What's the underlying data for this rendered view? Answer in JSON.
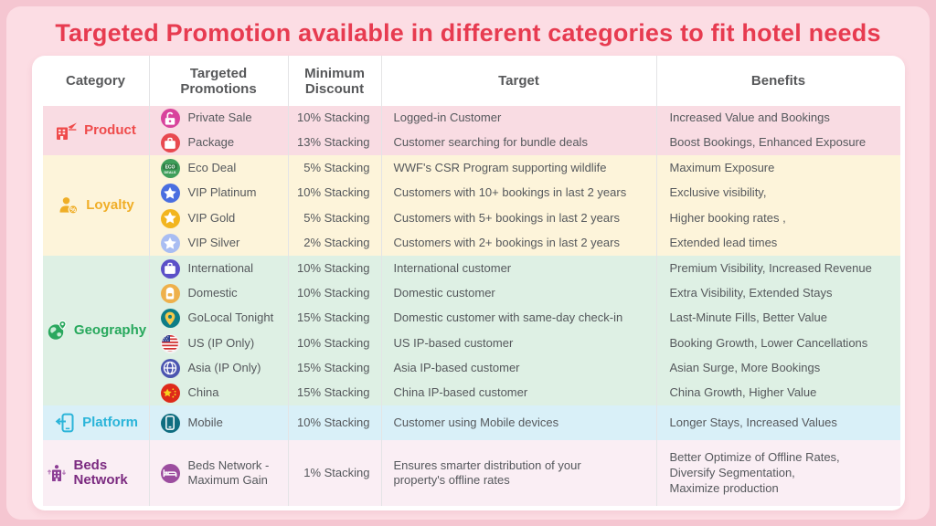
{
  "title": "Targeted Promotion available in different categories to fit hotel needs",
  "accent_color": "#e73b50",
  "table": {
    "headers": [
      "Category",
      "Targeted Promotions",
      "Minimum Discount",
      "Target",
      "Benefits"
    ],
    "categories": [
      {
        "name": "Product",
        "color": "#ef4b4b",
        "band_bg": "#f9dce3",
        "icon": "building-plane-icon",
        "rows": [
          {
            "icon": "unlock-icon",
            "icon_bg": "#d8439c",
            "label": "Private Sale",
            "discount": "10% Stacking",
            "target": "Logged-in Customer",
            "benefit": "Increased Value and Bookings"
          },
          {
            "icon": "package-icon",
            "icon_bg": "#e8494f",
            "label": "Package",
            "discount": "13% Stacking",
            "target": "Customer searching for bundle deals",
            "benefit": "Boost Bookings, Enhanced Exposure"
          }
        ]
      },
      {
        "name": "Loyalty",
        "color": "#f0ae27",
        "band_bg": "#fdf4da",
        "icon": "person-percent-icon",
        "rows": [
          {
            "icon": "eco-icon",
            "icon_bg": "#3f9e5a",
            "label": "Eco Deal",
            "discount": "5% Stacking",
            "target": "WWF's CSR Program supporting wildlife",
            "benefit": "Maximum Exposure"
          },
          {
            "icon": "star-icon",
            "icon_bg": "#4a6ee0",
            "label": "VIP Platinum",
            "discount": "10% Stacking",
            "target": "Customers with 10+ bookings in last 2 years",
            "benefit": "Exclusive visibility,"
          },
          {
            "icon": "star-icon",
            "icon_bg": "#f2b51f",
            "label": "VIP Gold",
            "discount": "5% Stacking",
            "target": "Customers with 5+ bookings in last 2 years",
            "benefit": "Higher booking rates ,"
          },
          {
            "icon": "star-icon",
            "icon_bg": "#a9bdf2",
            "label": "VIP Silver",
            "discount": "2% Stacking",
            "target": "Customers with 2+ bookings in last 2 years",
            "benefit": "Extended lead times"
          }
        ]
      },
      {
        "name": "Geography",
        "color": "#27a85c",
        "band_bg": "#def0e4",
        "icon": "globe-pin-icon",
        "rows": [
          {
            "icon": "suitcase-icon",
            "icon_bg": "#5b50c8",
            "label": "International",
            "discount": "10% Stacking",
            "target": "International customer",
            "benefit": "Premium Visibility, Increased Revenue"
          },
          {
            "icon": "backpack-icon",
            "icon_bg": "#eeb04b",
            "label": "Domestic",
            "discount": "10% Stacking",
            "target": "Domestic customer",
            "benefit": "Extra Visibility, Extended Stays"
          },
          {
            "icon": "map-pin-icon",
            "icon_bg": "#0e7d86",
            "label": "GoLocal Tonight",
            "discount": "15% Stacking",
            "target": "Domestic customer with same-day check-in",
            "benefit": "Last-Minute Fills, Better Value"
          },
          {
            "icon": "us-flag-icon",
            "icon_bg": "#f2f2f2",
            "label": "US (IP Only)",
            "discount": "10% Stacking",
            "target": "US IP-based customer",
            "benefit": "Booking Growth, Lower Cancellations"
          },
          {
            "icon": "globe-icon",
            "icon_bg": "#4b55b0",
            "label": "Asia (IP Only)",
            "discount": "15% Stacking",
            "target": "Asia IP-based customer",
            "benefit": "Asian Surge, More Bookings"
          },
          {
            "icon": "china-flag-icon",
            "icon_bg": "#de2a1a",
            "label": "China",
            "discount": "15% Stacking",
            "target": "China IP-based customer",
            "benefit": "China Growth, Higher Value"
          }
        ]
      },
      {
        "name": "Platform",
        "color": "#2ab4d9",
        "band_bg": "#d9f0f8",
        "icon": "phone-arrow-icon",
        "rows": [
          {
            "icon": "mobile-icon",
            "icon_bg": "#0f6d80",
            "label": "Mobile",
            "discount": "10% Stacking",
            "target": "Customer using Mobile devices",
            "benefit": "Longer Stays, Increased Values"
          }
        ]
      },
      {
        "name": "Beds Network",
        "color": "#7b2a80",
        "band_bg": "#faeef4",
        "icon": "building-arrows-icon",
        "rows": [
          {
            "icon": "bed-icon",
            "icon_bg": "#9c4d9f",
            "label": "Beds Network -\nMaximum Gain",
            "discount": "1% Stacking",
            "target": "Ensures smarter distribution of your\nproperty's offline rates",
            "benefit": "Better Optimize of Offline Rates,\nDiversify Segmentation,\nMaximize production"
          }
        ]
      }
    ]
  }
}
